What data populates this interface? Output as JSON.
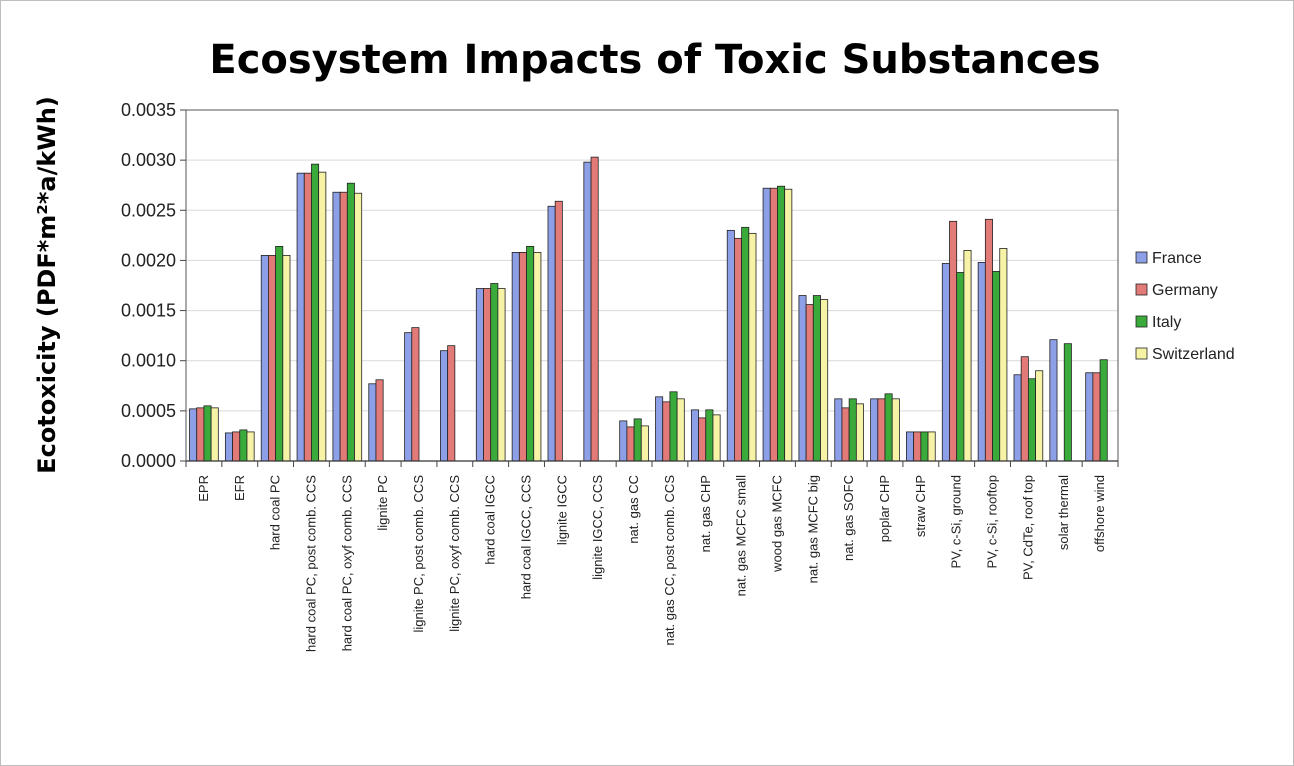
{
  "chart_data": {
    "type": "bar",
    "title": "Ecosystem Impacts of Toxic Substances",
    "xlabel": "",
    "ylabel": "Ecotoxicity (PDF*m²*a/kWh)",
    "ylim": [
      0,
      0.0035
    ],
    "yticks": [
      "0.0000",
      "0.0005",
      "0.0010",
      "0.0015",
      "0.0020",
      "0.0025",
      "0.0030",
      "0.0035"
    ],
    "grid": true,
    "legend_position": "right",
    "categories": [
      "EPR",
      "EFR",
      "hard coal PC",
      "hard coal PC, post comb. CCS",
      "hard coal PC, oxyf comb. CCS",
      "lignite PC",
      "lignite PC, post comb. CCS",
      "lignite PC, oxyf comb. CCS",
      "hard coal IGCC",
      "hard coal IGCC, CCS",
      "lignite IGCC",
      "lignite IGCC, CCS",
      "nat. gas CC",
      "nat. gas CC, post comb. CCS",
      "nat. gas CHP",
      "nat. gas MCFC small",
      "wood gas MCFC",
      "nat. gas MCFC big",
      "nat. gas SOFC",
      "poplar CHP",
      "straw CHP",
      "PV, c-Si, ground",
      "PV, c-Si, rooftop",
      "PV, CdTe, roof top",
      "solar thermal",
      "offshore wind"
    ],
    "series": [
      {
        "name": "France",
        "color": "#8d9fe6",
        "values": [
          0.00052,
          0.00028,
          0.00205,
          0.00287,
          0.00268,
          0.00077,
          0.00128,
          0.0011,
          0.00172,
          0.00208,
          0.00254,
          0.00298,
          0.0004,
          0.00064,
          0.00051,
          0.0023,
          0.00272,
          0.00165,
          0.00062,
          0.00062,
          0.00029,
          0.00197,
          0.00198,
          0.00086,
          0.00121,
          0.00088
        ]
      },
      {
        "name": "Germany",
        "color": "#e27a78",
        "values": [
          0.00053,
          0.00029,
          0.00205,
          0.00287,
          0.00268,
          0.00081,
          0.00133,
          0.00115,
          0.00172,
          0.00208,
          0.00259,
          0.00303,
          0.00034,
          0.00059,
          0.00043,
          0.00222,
          0.00272,
          0.00156,
          0.00053,
          0.00062,
          0.00029,
          0.00239,
          0.00241,
          0.00104,
          null,
          0.00088
        ]
      },
      {
        "name": "Italy",
        "color": "#3aab3a",
        "values": [
          0.00055,
          0.00031,
          0.00214,
          0.00296,
          0.00277,
          null,
          null,
          null,
          0.00177,
          0.00214,
          null,
          null,
          0.00042,
          0.00069,
          0.00051,
          0.00233,
          0.00274,
          0.00165,
          0.00062,
          0.00067,
          0.00029,
          0.00188,
          0.00189,
          0.00082,
          0.00117,
          0.00101
        ]
      },
      {
        "name": "Switzerland",
        "color": "#f7f3a6",
        "values": [
          0.00053,
          0.00029,
          0.00205,
          0.00288,
          0.00267,
          null,
          null,
          null,
          0.00172,
          0.00208,
          null,
          null,
          0.00035,
          0.00062,
          0.00046,
          0.00227,
          0.00271,
          0.00161,
          0.00057,
          0.00062,
          0.00029,
          0.0021,
          0.00212,
          0.0009,
          null,
          null
        ]
      }
    ]
  }
}
